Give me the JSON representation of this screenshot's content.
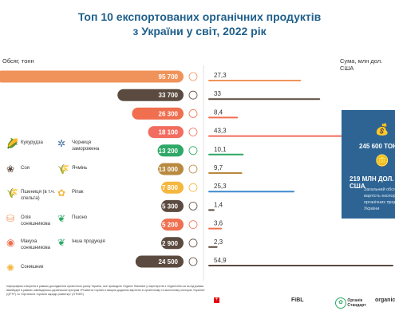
{
  "header": {
    "title_line1": "Топ 10 експортованих органічних продуктів",
    "title_line2": "з України у світ, 2022 рік",
    "left_label": "Обсяг, тонн",
    "right_label": "Сума, млн дол. США"
  },
  "chart_data": {
    "type": "bar",
    "series": [
      {
        "name": "Обсяг, тонн",
        "values": [
          95700,
          33700,
          26300,
          18100,
          13200,
          13000,
          7800,
          5300,
          5200,
          2900,
          24500
        ],
        "labels": [
          "95 700",
          "33 700",
          "26 300",
          "18 100",
          "13 200",
          "13 000",
          "7 800",
          "5 300",
          "5 200",
          "2 900",
          "24 500"
        ]
      },
      {
        "name": "Сума, млн дол. США",
        "values": [
          27.3,
          33,
          8.4,
          43.3,
          10.1,
          9.7,
          25.3,
          1.4,
          3.6,
          2.3,
          54.9
        ],
        "labels": [
          "27,3",
          "33",
          "8,4",
          "43,3",
          "10,1",
          "9,7",
          "25,3",
          "1,4",
          "3,6",
          "2,3",
          "54,9"
        ]
      }
    ],
    "categories": [
      "Кукурудза",
      "Соя",
      "Пшениця (в т.ч. спельта)",
      "Чорниця заморожена",
      "Олія соняшникова",
      "Ячмінь",
      "Ріпак",
      "Пшоно",
      "Макуха соняшникова",
      "Соняшник",
      "Інша продукція"
    ],
    "colors": [
      "#f0935a",
      "#5b4a3f",
      "#ef6f4f",
      "#f26c5f",
      "#2ea866",
      "#b8893f",
      "#f5b73f",
      "#5b4a3f",
      "#ef6f4f",
      "#5b4a3f",
      "#5b4a3f"
    ],
    "right_colors": [
      "#f0935a",
      "#5b4a3f",
      "#ef6f4f",
      "#f26c5f",
      "#2ea866",
      "#b8893f",
      "#3b8ad0",
      "#5b4a3f",
      "#ef6f4f",
      "#5b4a3f",
      "#5b4a3f"
    ]
  },
  "legend": [
    {
      "label": "Кукурудза",
      "icon": "corn-icon",
      "glyph": "🌽",
      "color": "#f0935a"
    },
    {
      "label": "Чорниця заморожена",
      "icon": "blueberry-icon",
      "glyph": "✲",
      "color": "#3b6ea0"
    },
    {
      "label": "Соя",
      "icon": "soy-icon",
      "glyph": "❀",
      "color": "#5b4a3f"
    },
    {
      "label": "Ячмінь",
      "icon": "barley-icon",
      "glyph": "🌾",
      "color": "#b8893f"
    },
    {
      "label": "Пшениця (в т.ч. спельта)",
      "icon": "wheat-icon",
      "glyph": "🌾",
      "color": "#ef6f4f"
    },
    {
      "label": "Ріпак",
      "icon": "rapeseed-icon",
      "glyph": "✿",
      "color": "#f5b73f"
    },
    {
      "label": "Олія соняшникова",
      "icon": "oil-icon",
      "glyph": "⛁",
      "color": "#f0935a"
    },
    {
      "label": "Пшоно",
      "icon": "millet-icon",
      "glyph": "❦",
      "color": "#2ea866"
    },
    {
      "label": "Макуха соняшникова",
      "icon": "cake-icon",
      "glyph": "◉",
      "color": "#ef6f4f"
    },
    {
      "label": "Інша продукція",
      "icon": "other-icon",
      "glyph": "❦",
      "color": "#2ea866"
    },
    {
      "label": "Соняшник",
      "icon": "sunflower-icon",
      "glyph": "✺",
      "color": "#f5b73f"
    }
  ],
  "infobox": {
    "tons": "245 600 ТОНН",
    "usd": "219 МЛН ДОЛ. США",
    "desc": "Загальний обсяг та вартість експортованих органічних продуктів з України"
  },
  "footer": {
    "text": "Інфографіка створена в рамках дослідження органічного ринку України, яке проводить Organic Standard у партнерстві з OrganicInfo.ua за підтримки Швейцарії в рамках швейцарсько-українських програм «Розвиток торгівлі з вищою доданою вартістю в органічному та молочному секторах України» (QFTP) та «Органічна торгівля заради розвитку» (GTDEE)"
  },
  "logos": {
    "fibl": "FiBL",
    "organic_standard": "Органік Стандарт",
    "organicinfo": "organicinfo"
  }
}
